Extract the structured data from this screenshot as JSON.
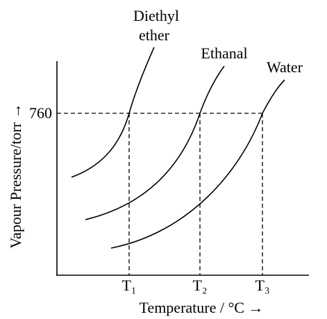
{
  "axes": {
    "y_label": "Vapour Pressure/torr →",
    "x_label": "Temperature / °C →",
    "y_tick": "760",
    "x_ticks": [
      "T₁",
      "T₂",
      "T₃"
    ]
  },
  "curves": [
    {
      "label_lines": [
        "Diethyl",
        "ether"
      ]
    },
    {
      "label_lines": [
        "Ethanal"
      ]
    },
    {
      "label_lines": [
        "Water"
      ]
    }
  ]
}
